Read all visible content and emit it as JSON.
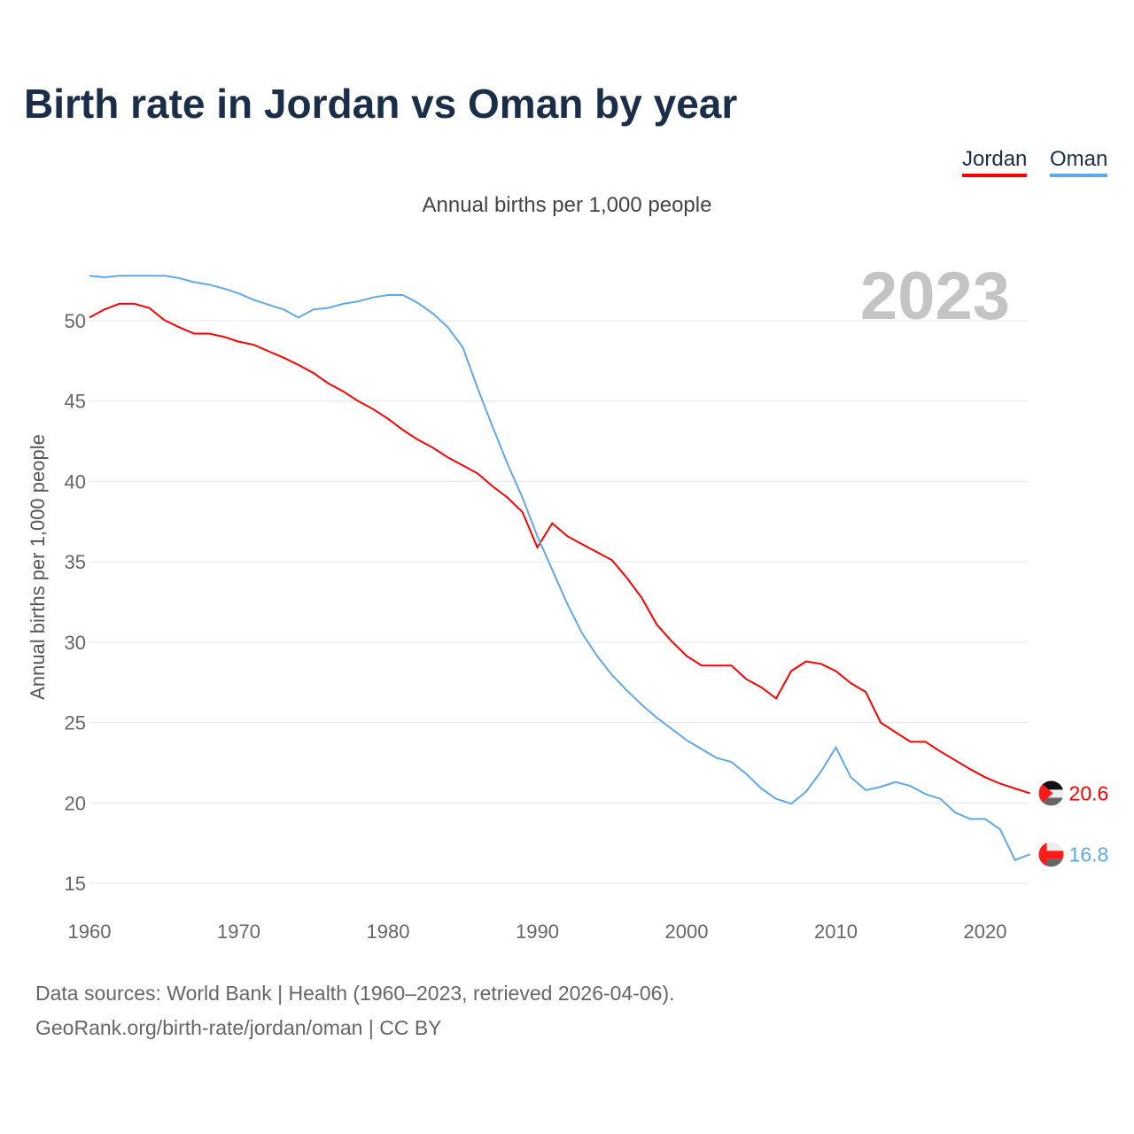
{
  "title": "Birth rate in Jordan vs Oman by year",
  "legend": [
    {
      "name": "Jordan",
      "color": "#ff0000"
    },
    {
      "name": "Oman",
      "color": "#5fa8ee"
    }
  ],
  "footer": {
    "line1": "Data sources: World Bank | Health (1960–2023, retrieved 2026-04-06).",
    "line2": "GeoRank.org/birth-rate/jordan/oman | CC BY"
  },
  "chart_data": {
    "type": "line",
    "title": "Birth rate in Jordan vs Oman by year",
    "subtitle": "Annual births per 1,000 people",
    "ylabel": "Annual births per 1,000 people",
    "xlabel": "",
    "year_label": "2023",
    "xlim": [
      1960,
      2023
    ],
    "ylim": [
      15,
      53
    ],
    "yticks": [
      15,
      20,
      25,
      30,
      35,
      40,
      45,
      50
    ],
    "xticks": [
      1960,
      1970,
      1980,
      1990,
      2000,
      2010,
      2020
    ],
    "x_start": 1960,
    "series": [
      {
        "name": "Jordan",
        "color": "#ff0000",
        "end_label": "20.6",
        "values": [
          50.2,
          50.7,
          51.05,
          51.05,
          50.8,
          50.05,
          49.6,
          49.2,
          49.2,
          49.0,
          48.7,
          48.5,
          48.1,
          47.7,
          47.25,
          46.75,
          46.1,
          45.6,
          45.0,
          44.5,
          43.9,
          43.2,
          42.6,
          42.1,
          41.5,
          41.0,
          40.5,
          39.7,
          39.0,
          38.1,
          35.9,
          37.4,
          36.6,
          36.1,
          35.6,
          35.1,
          34.0,
          32.75,
          31.1,
          30.05,
          29.15,
          28.55,
          28.55,
          28.55,
          27.7,
          27.2,
          26.5,
          28.2,
          28.8,
          28.65,
          28.2,
          27.45,
          26.9,
          25.0,
          24.4,
          23.8,
          23.8,
          23.2,
          22.65,
          22.1,
          21.6,
          21.2,
          20.9,
          20.6
        ]
      },
      {
        "name": "Oman",
        "color": "#5fa8ee",
        "end_label": "16.8",
        "values": [
          52.8,
          52.7,
          52.8,
          52.8,
          52.8,
          52.8,
          52.65,
          52.4,
          52.25,
          52.0,
          51.7,
          51.3,
          51.0,
          50.7,
          50.2,
          50.7,
          50.8,
          51.05,
          51.2,
          51.45,
          51.6,
          51.6,
          51.1,
          50.45,
          49.6,
          48.35,
          45.8,
          43.4,
          41.1,
          39.0,
          36.6,
          34.5,
          32.4,
          30.55,
          29.15,
          27.95,
          27.0,
          26.1,
          25.3,
          24.6,
          23.9,
          23.35,
          22.8,
          22.55,
          21.8,
          20.9,
          20.25,
          19.95,
          20.7,
          21.95,
          23.45,
          21.6,
          20.8,
          21.0,
          21.3,
          21.05,
          20.55,
          20.25,
          19.4,
          19.0,
          19.0,
          18.35,
          16.45,
          16.8
        ]
      }
    ]
  }
}
